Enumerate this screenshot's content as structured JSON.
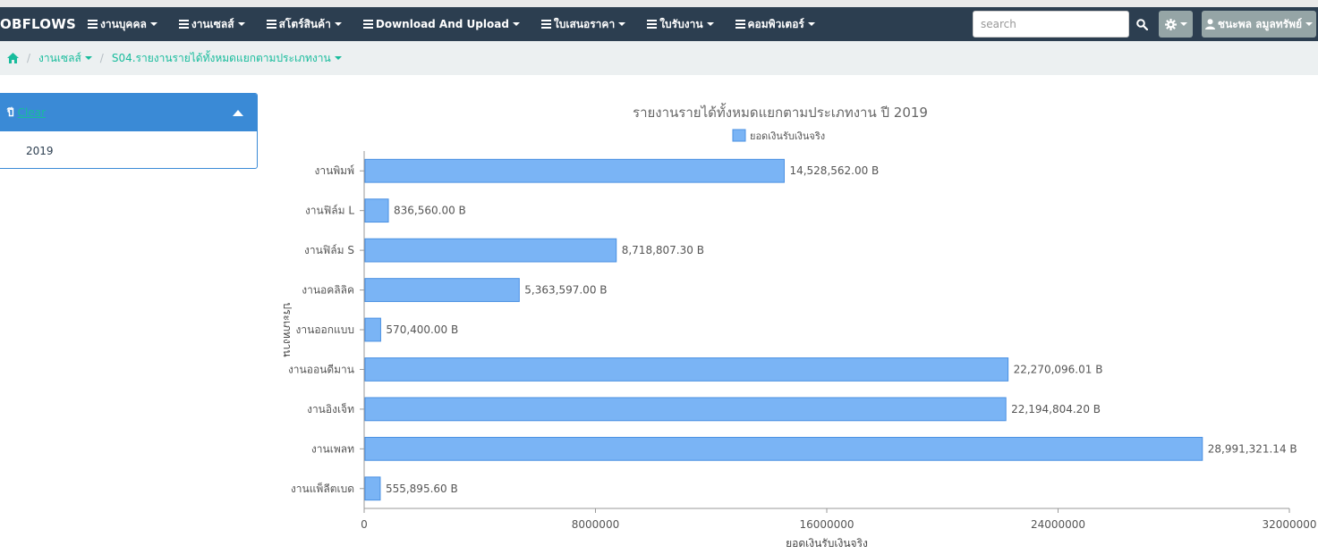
{
  "navbar": {
    "brand": "OBFLOWS",
    "menu": [
      {
        "label": "งานบุคคล"
      },
      {
        "label": "งานเซลส์"
      },
      {
        "label": "สโตร์สินค้า"
      },
      {
        "label": "Download And Upload"
      },
      {
        "label": "ใบเสนอราคา"
      },
      {
        "label": "ใบรับงาน"
      },
      {
        "label": "คอมพิวเตอร์"
      }
    ],
    "search_placeholder": "search",
    "user_name": "ชนะพล ลมูลทรัพย์"
  },
  "breadcrumb": {
    "items": [
      "งานเซลส์",
      "S04.รายงานรายได้ทั้งหมดแยกตามประเภทงาน"
    ]
  },
  "filter": {
    "title": "ปี",
    "clear_label": "Clear",
    "options": [
      "2019"
    ]
  },
  "colors": {
    "navbar": "#2c3e50",
    "accent": "#18bc9c",
    "panel": "#3a8ad6",
    "bar_fill": "#7ab4f5",
    "bar_stroke": "#4a90e2"
  },
  "chart_data": {
    "type": "bar",
    "orientation": "horizontal",
    "title": "รายงานรายได้ทั้งหมดแยกตามประเภทงาน ปี 2019",
    "xlabel": "ยอดเงินรับเงินจริง",
    "ylabel": "ประเภทงาน",
    "legend": "top",
    "grid": false,
    "xlim": [
      0,
      32000000
    ],
    "xticks": [
      "0",
      "8000000",
      "16000000",
      "24000000",
      "32000000"
    ],
    "categories": [
      "งานพิมพ์",
      "งานฟิล์ม L",
      "งานฟิล์ม S",
      "งานอคลิลิค",
      "งานออกแบบ",
      "งานออนดีมาน",
      "งานอิงเจ็ท",
      "งานเพลท",
      "งานแพ็ลีตเบด"
    ],
    "series": [
      {
        "name": "ยอดเงินรับเงินจริง",
        "values": [
          14528562.0,
          836560.0,
          8718807.3,
          5363597.0,
          570400.0,
          22270096.01,
          22194804.2,
          28991321.14,
          555895.6
        ],
        "labels": [
          "14,528,562.00 B",
          "836,560.00 B",
          "8,718,807.30 B",
          "5,363,597.00 B",
          "570,400.00 B",
          "22,270,096.01 B",
          "22,194,804.20 B",
          "28,991,321.14 B",
          "555,895.60 B"
        ]
      }
    ]
  }
}
